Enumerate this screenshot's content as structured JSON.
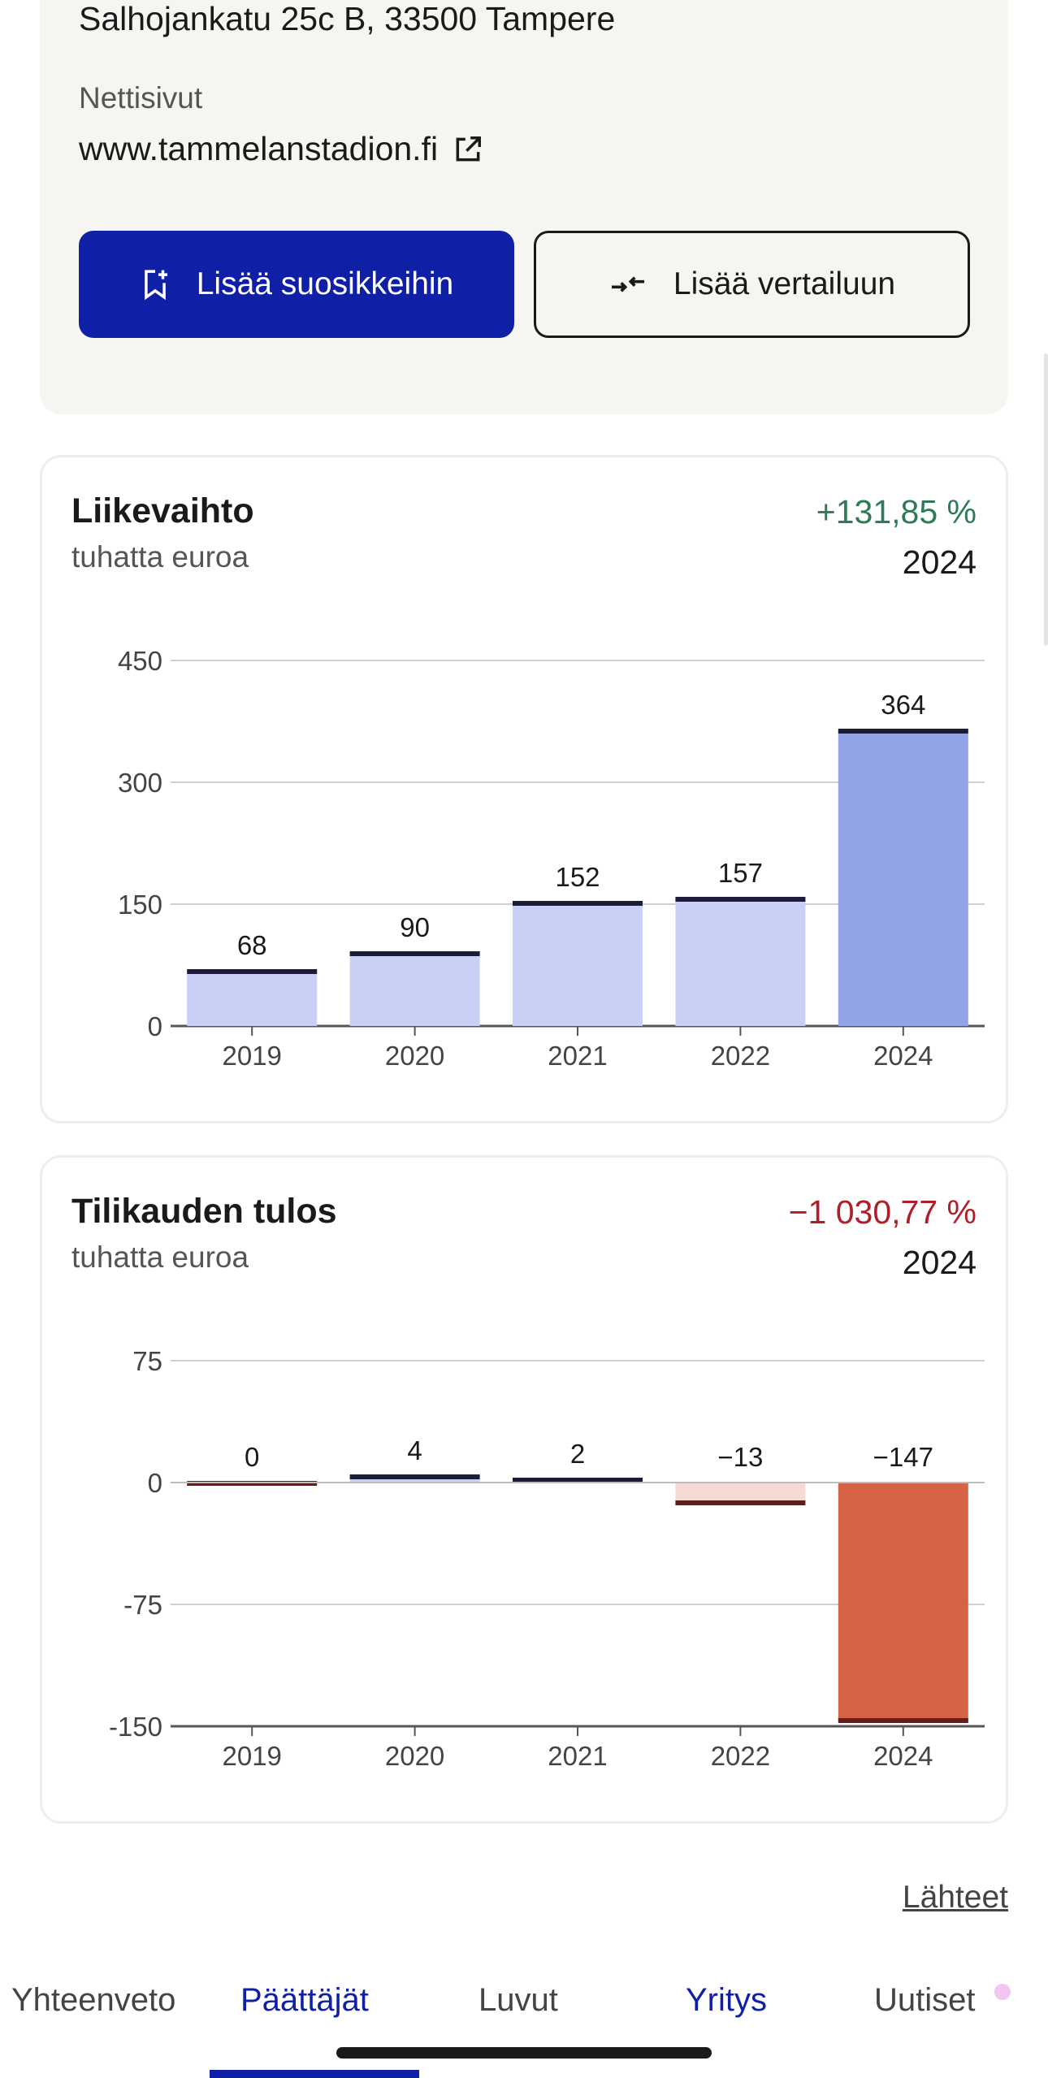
{
  "info": {
    "address": "Salhojankatu 25c B, 33500 Tampere",
    "website_label": "Nettisivut",
    "website": "www.tammelanstadion.fi",
    "favorite_button": "Lisää suosikkeihin",
    "compare_button": "Lisää vertailuun"
  },
  "revenue": {
    "title": "Liikevaihto",
    "subtitle": "tuhatta euroa",
    "change": "+131,85 %",
    "change_year": "2024",
    "chart_data": {
      "type": "bar",
      "categories": [
        "2019",
        "2020",
        "2021",
        "2022",
        "2024"
      ],
      "values": [
        68,
        90,
        152,
        157,
        364
      ],
      "value_labels": [
        "68",
        "90",
        "152",
        "157",
        "364"
      ],
      "yticks": [
        0,
        150,
        300,
        450
      ],
      "ytick_labels": [
        "0",
        "150",
        "300",
        "450"
      ],
      "ylim": [
        0,
        450
      ],
      "grid": true,
      "colors": {
        "bar": "#c8d1f5",
        "bar_highlight": "#93a3e8",
        "cap": "#1c1c3a"
      }
    }
  },
  "profit": {
    "title": "Tilikauden tulos",
    "subtitle": "tuhatta euroa",
    "change": "−1 030,77 %",
    "change_year": "2024",
    "chart_data": {
      "type": "bar",
      "categories": [
        "2019",
        "2020",
        "2021",
        "2022",
        "2024"
      ],
      "values": [
        0,
        4,
        2,
        -13,
        -147
      ],
      "value_labels": [
        "0",
        "4",
        "2",
        "−13",
        "−147"
      ],
      "yticks": [
        75,
        0,
        -75,
        -150
      ],
      "ytick_labels": [
        "75",
        "0",
        "-75",
        "-150"
      ],
      "ylim": [
        -150,
        75
      ],
      "grid": true,
      "colors": {
        "positive": "#c8d1f5",
        "negative": "#f7dad6",
        "negative_highlight": "#d66347",
        "cap_positive": "#1c1c3a",
        "cap_negative": "#5e1f1f"
      }
    }
  },
  "sources_link": "Lähteet",
  "nav": {
    "tabs": [
      "Yhteenveto",
      "Päättäjät",
      "Luvut",
      "Yritys",
      "Uutiset"
    ],
    "active_tab": "Päättäjät"
  },
  "colors": {
    "positive_change": "#2f7a57",
    "negative_change": "#b01e2a",
    "accent": "#1020a6"
  }
}
